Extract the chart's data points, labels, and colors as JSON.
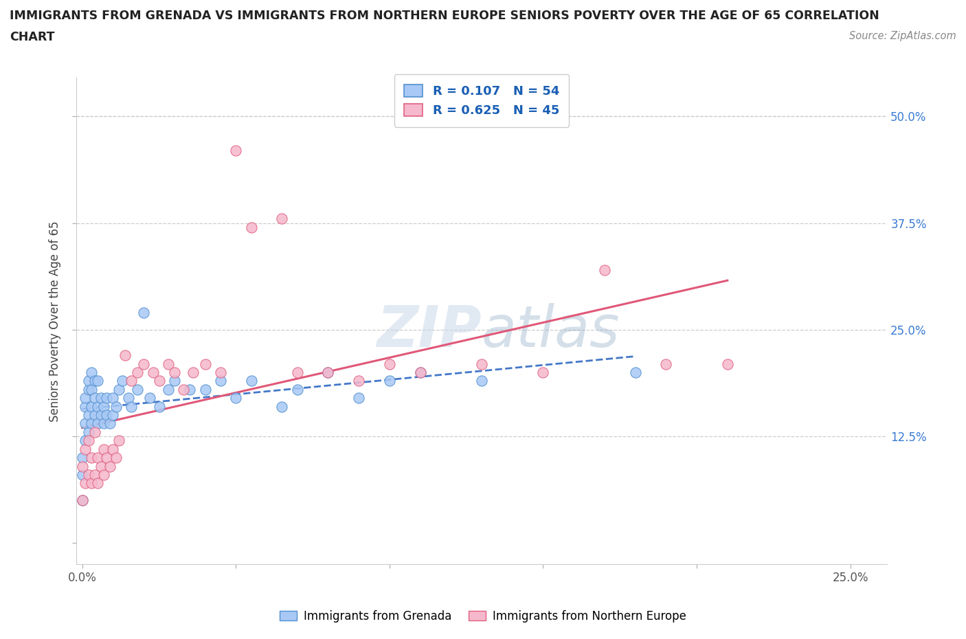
{
  "title_line1": "IMMIGRANTS FROM GRENADA VS IMMIGRANTS FROM NORTHERN EUROPE SENIORS POVERTY OVER THE AGE OF 65 CORRELATION",
  "title_line2": "CHART",
  "source": "Source: ZipAtlas.com",
  "ylabel": "Seniors Poverty Over the Age of 65",
  "xlim": [
    -0.002,
    0.262
  ],
  "ylim": [
    -0.025,
    0.545
  ],
  "grenada_R": 0.107,
  "grenada_N": 54,
  "northern_R": 0.625,
  "northern_N": 45,
  "grenada_color": "#a8c8f5",
  "northern_color": "#f5b8cc",
  "grenada_edge_color": "#5090d0",
  "northern_edge_color": "#e06080",
  "grenada_line_color": "#4478c8",
  "northern_line_color": "#e05878",
  "background_color": "#ffffff",
  "grid_color": "#cccccc",
  "watermark_color": "#c8d8e8",
  "watermark_text_color": "#aabbd0",
  "legend_color": "#1a5fb4",
  "ytick_color": "#3a7bd5",
  "xtick_color": "#555555",
  "grenada_scatter_x": [
    0.0,
    0.0,
    0.0,
    0.001,
    0.001,
    0.001,
    0.001,
    0.002,
    0.002,
    0.002,
    0.002,
    0.003,
    0.003,
    0.003,
    0.003,
    0.004,
    0.004,
    0.004,
    0.005,
    0.005,
    0.005,
    0.006,
    0.006,
    0.007,
    0.007,
    0.008,
    0.008,
    0.009,
    0.01,
    0.01,
    0.011,
    0.012,
    0.013,
    0.015,
    0.016,
    0.018,
    0.02,
    0.022,
    0.025,
    0.028,
    0.03,
    0.035,
    0.04,
    0.045,
    0.05,
    0.055,
    0.065,
    0.07,
    0.08,
    0.09,
    0.1,
    0.11,
    0.13,
    0.18
  ],
  "grenada_scatter_y": [
    0.05,
    0.08,
    0.1,
    0.12,
    0.14,
    0.16,
    0.17,
    0.13,
    0.15,
    0.18,
    0.19,
    0.14,
    0.16,
    0.18,
    0.2,
    0.15,
    0.17,
    0.19,
    0.14,
    0.16,
    0.19,
    0.15,
    0.17,
    0.14,
    0.16,
    0.15,
    0.17,
    0.14,
    0.15,
    0.17,
    0.16,
    0.18,
    0.19,
    0.17,
    0.16,
    0.18,
    0.27,
    0.17,
    0.16,
    0.18,
    0.19,
    0.18,
    0.18,
    0.19,
    0.17,
    0.19,
    0.16,
    0.18,
    0.2,
    0.17,
    0.19,
    0.2,
    0.19,
    0.2
  ],
  "northern_scatter_x": [
    0.0,
    0.0,
    0.001,
    0.001,
    0.002,
    0.002,
    0.003,
    0.003,
    0.004,
    0.004,
    0.005,
    0.005,
    0.006,
    0.007,
    0.007,
    0.008,
    0.009,
    0.01,
    0.011,
    0.012,
    0.014,
    0.016,
    0.018,
    0.02,
    0.023,
    0.025,
    0.028,
    0.03,
    0.033,
    0.036,
    0.04,
    0.045,
    0.05,
    0.055,
    0.065,
    0.07,
    0.08,
    0.09,
    0.1,
    0.11,
    0.13,
    0.15,
    0.17,
    0.19,
    0.21
  ],
  "northern_scatter_y": [
    0.05,
    0.09,
    0.07,
    0.11,
    0.08,
    0.12,
    0.07,
    0.1,
    0.08,
    0.13,
    0.07,
    0.1,
    0.09,
    0.08,
    0.11,
    0.1,
    0.09,
    0.11,
    0.1,
    0.12,
    0.22,
    0.19,
    0.2,
    0.21,
    0.2,
    0.19,
    0.21,
    0.2,
    0.18,
    0.2,
    0.21,
    0.2,
    0.46,
    0.37,
    0.38,
    0.2,
    0.2,
    0.19,
    0.21,
    0.2,
    0.21,
    0.2,
    0.32,
    0.21,
    0.21
  ]
}
